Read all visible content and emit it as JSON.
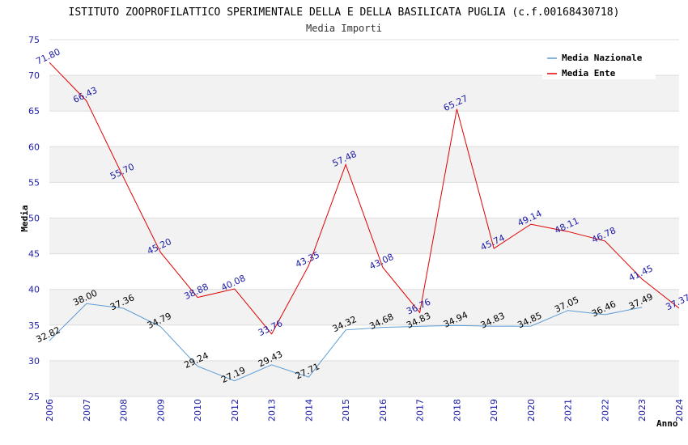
{
  "chart_data": {
    "type": "line",
    "title": "ISTITUTO ZOOPROFILATTICO SPERIMENTALE DELLA E DELLA BASILICATA PUGLIA (c.f.00168430718)",
    "subtitle": "Media Importi",
    "xlabel": "Anno",
    "ylabel": "Media",
    "ylim": [
      25,
      75
    ],
    "yticks": [
      25,
      30,
      35,
      40,
      45,
      50,
      55,
      60,
      65,
      70,
      75
    ],
    "grid": true,
    "legend_position": "top-right",
    "categories": [
      "2006",
      "2007",
      "2008",
      "2009",
      "2010",
      "2012",
      "2013",
      "2014",
      "2015",
      "2016",
      "2017",
      "2018",
      "2019",
      "2020",
      "2021",
      "2022",
      "2023",
      "2024"
    ],
    "series": [
      {
        "name": "Media Nazionale",
        "color": "#5b9bd5",
        "values": [
          32.82,
          38.0,
          37.36,
          34.79,
          29.24,
          27.19,
          29.43,
          27.71,
          34.32,
          34.68,
          34.83,
          34.94,
          34.83,
          34.85,
          37.05,
          36.46,
          37.49,
          null
        ],
        "labels": [
          "32.82",
          "38.00",
          "37.36",
          "34.79",
          "29.24",
          "27.19",
          "29.43",
          "27.71",
          "34.32",
          "34.68",
          "34.83",
          "34.94",
          "34.83",
          "34.85",
          "37.05",
          "36.46",
          "37.49",
          null
        ]
      },
      {
        "name": "Media Ente",
        "color": "#e00000",
        "values": [
          71.8,
          66.43,
          55.7,
          45.2,
          38.88,
          40.08,
          33.76,
          43.35,
          57.48,
          43.08,
          36.76,
          65.27,
          45.74,
          49.14,
          48.11,
          46.78,
          41.45,
          37.37
        ],
        "labels": [
          "71.80",
          "66.43",
          "55.70",
          "45.20",
          "38.88",
          "40.08",
          "33.76",
          "43.35",
          "57.48",
          "43.08",
          "36.76",
          "65.27",
          "45.74",
          "49.14",
          "48.11",
          "46.78",
          "41.45",
          "37.37"
        ]
      }
    ]
  }
}
